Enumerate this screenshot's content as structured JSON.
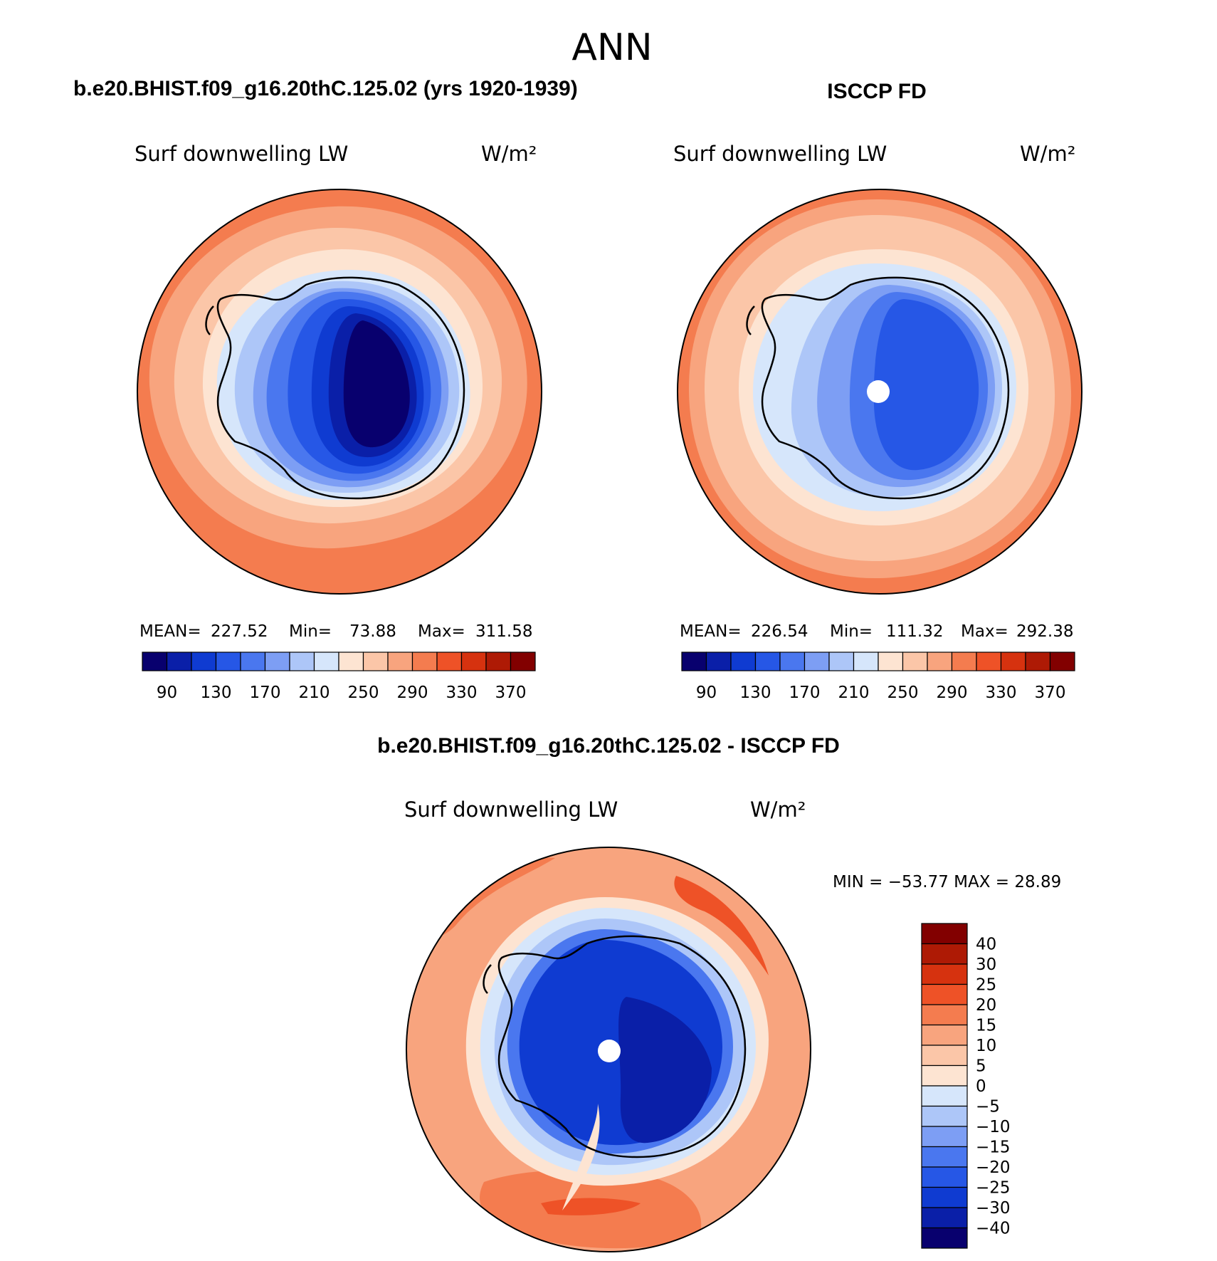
{
  "title": "ANN",
  "panels": {
    "model": {
      "header": "b.e20.BHIST.f09_g16.20thC.125.02 (yrs 1920-1939)",
      "variable": "Surf downwelling LW",
      "units": "W/m²",
      "stats": {
        "mean_label": "MEAN=",
        "mean": "227.52",
        "min_label": "Min=",
        "min": "73.88",
        "max_label": "Max=",
        "max": "311.58"
      }
    },
    "obs": {
      "header": "ISCCP FD",
      "variable": "Surf downwelling LW",
      "units": "W/m²",
      "stats": {
        "mean_label": "MEAN=",
        "mean": "226.54",
        "min_label": "Min=",
        "min": "111.32",
        "max_label": "Max=",
        "max": "292.38"
      }
    },
    "diff": {
      "header": "b.e20.BHIST.f09_g16.20thC.125.02 - ISCCP FD",
      "variable": "Surf downwelling LW",
      "units": "W/m²",
      "minmax": "MIN = −53.77 MAX =   28.89"
    }
  },
  "chart_data": [
    {
      "type": "heatmap",
      "projection": "south polar stereographic",
      "title": "b.e20.BHIST.f09_g16.20thC.125.02 (yrs 1920-1939)",
      "variable": "Surf downwelling LW",
      "units": "W/m²",
      "mean": 227.52,
      "min": 73.88,
      "max": 311.58,
      "colorbar_ticks": [
        "90",
        "130",
        "170",
        "210",
        "250",
        "290",
        "330",
        "370"
      ],
      "levels": [
        90,
        110,
        130,
        150,
        170,
        190,
        210,
        230,
        250,
        270,
        290,
        310,
        330,
        350,
        370
      ],
      "colors": [
        "#08006e",
        "#0a1fa8",
        "#0f3bd1",
        "#2657e6",
        "#4a77ef",
        "#7d9ef4",
        "#adc6f8",
        "#d6e6fb",
        "#fde4d2",
        "#fbc6a8",
        "#f8a47e",
        "#f47c4f",
        "#ee5227",
        "#d6320f",
        "#ae1a05",
        "#820000"
      ]
    },
    {
      "type": "heatmap",
      "projection": "south polar stereographic",
      "title": "ISCCP FD",
      "variable": "Surf downwelling LW",
      "units": "W/m²",
      "mean": 226.54,
      "min": 111.32,
      "max": 292.38,
      "colorbar_ticks": [
        "90",
        "130",
        "170",
        "210",
        "250",
        "290",
        "330",
        "370"
      ]
    },
    {
      "type": "heatmap",
      "projection": "south polar stereographic",
      "title": "b.e20.BHIST.f09_g16.20thC.125.02 - ISCCP FD",
      "variable": "Surf downwelling LW",
      "units": "W/m²",
      "min": -53.77,
      "max": 28.89,
      "colorbar_ticks": [
        "40",
        "30",
        "25",
        "20",
        "15",
        "10",
        "5",
        "0",
        "−5",
        "−10",
        "−15",
        "−20",
        "−25",
        "−30",
        "−40"
      ],
      "colors": [
        "#820000",
        "#ae1a05",
        "#d6320f",
        "#ee5227",
        "#f47c4f",
        "#f8a47e",
        "#fbc6a8",
        "#fde4d2",
        "#d6e6fb",
        "#adc6f8",
        "#7d9ef4",
        "#4a77ef",
        "#2657e6",
        "#0f3bd1",
        "#0a1fa8",
        "#08006e"
      ]
    }
  ]
}
